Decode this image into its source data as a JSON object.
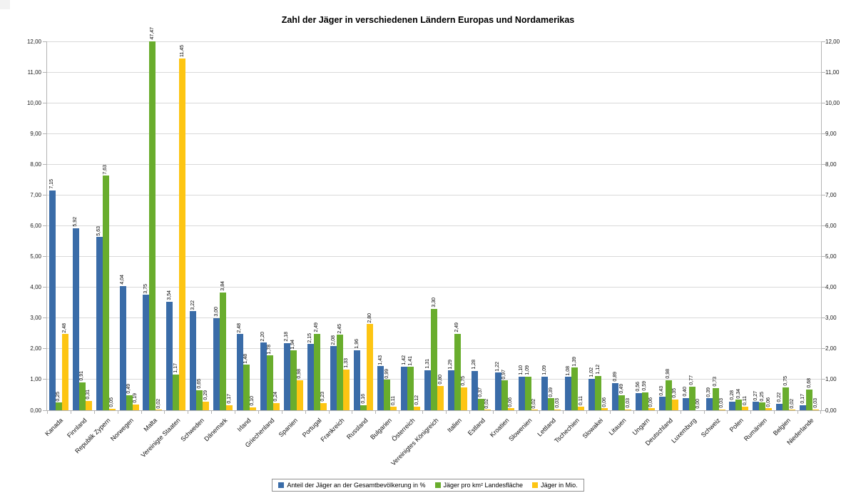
{
  "chart_data": {
    "type": "bar",
    "title": "Zahl der Jäger in verschiedenen Ländern Europas und Nordamerikas",
    "xlabel": "",
    "ylabel": "",
    "ylim": [
      0,
      12
    ],
    "ytick_step": 1,
    "y_axis_sides": [
      "left",
      "right"
    ],
    "grid": true,
    "legend_position": "bottom",
    "number_format": "german-comma-2-decimals",
    "value_labels": "rotated-90-above-bars",
    "categories": [
      "Kanada",
      "Finnland",
      "Republik Zypern",
      "Norwegen",
      "Malta",
      "Vereinigte Staaten",
      "Schweden",
      "Dänemark",
      "Irland",
      "Griechenland",
      "Spanien",
      "Portugal",
      "Frankreich",
      "Russland",
      "Bulgarien",
      "Österreich",
      "Vereinigtes Königreich",
      "Italien",
      "Estland",
      "Kroatien",
      "Slowenien",
      "Lettland",
      "Tschechien",
      "Slowakei",
      "Litauen",
      "Ungarn",
      "Deutschland",
      "Luxemburg",
      "Schweiz",
      "Polen",
      "Rumänien",
      "Belgien",
      "Niederlande"
    ],
    "series": [
      {
        "name": "Anteil der Jäger an der Gesamtbevölkerung in %",
        "color": "#3a6ca8",
        "values": [
          7.15,
          5.92,
          5.63,
          4.04,
          3.75,
          3.54,
          3.22,
          3.0,
          2.48,
          2.2,
          2.18,
          2.15,
          2.08,
          1.96,
          1.43,
          1.42,
          1.31,
          1.29,
          1.28,
          1.22,
          1.1,
          1.09,
          1.08,
          1.02,
          0.89,
          0.56,
          0.43,
          0.4,
          0.39,
          0.28,
          0.27,
          0.22,
          0.17
        ]
      },
      {
        "name": "Jäger pro km² Landesfläche",
        "color": "#69ad2d",
        "values": [
          0.25,
          0.91,
          7.63,
          0.49,
          47.47,
          1.17,
          0.65,
          3.84,
          1.48,
          1.78,
          1.94,
          2.49,
          2.45,
          0.16,
          0.99,
          1.41,
          3.3,
          2.49,
          0.37,
          0.97,
          1.09,
          0.39,
          1.39,
          1.12,
          0.49,
          0.59,
          0.98,
          0.77,
          0.73,
          0.34,
          0.25,
          0.75,
          0.68
        ]
      },
      {
        "name": "Jäger in Mio.",
        "color": "#fdc513",
        "values": [
          2.48,
          0.31,
          0.05,
          0.19,
          0.02,
          11.45,
          0.29,
          0.17,
          0.1,
          0.24,
          0.98,
          0.23,
          1.33,
          2.8,
          0.11,
          0.12,
          0.8,
          0.75,
          0.02,
          0.06,
          0.02,
          0.03,
          0.11,
          0.06,
          0.03,
          0.06,
          0.35,
          0.0,
          0.03,
          0.11,
          0.06,
          0.02,
          0.03
        ]
      }
    ]
  },
  "colors": {
    "gridline": "#d9d9d9",
    "axis_line": "#b3b3b3",
    "background": "#ffffff",
    "text": "#000000"
  }
}
